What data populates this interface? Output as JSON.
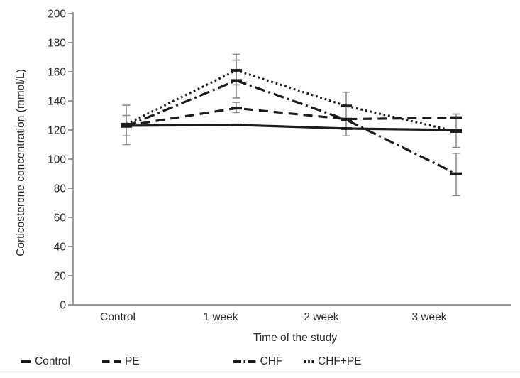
{
  "chart_data": {
    "type": "line",
    "title": "",
    "xlabel": "Time of the study",
    "ylabel": "Corticosterone concentration (mmol/L)",
    "categories": [
      "Control",
      "1 week",
      "2 week",
      "3 week"
    ],
    "series": [
      {
        "name": "Control",
        "style": "solid",
        "values": [
          123,
          123.5,
          121,
          120
        ]
      },
      {
        "name": "PE",
        "style": "dashed",
        "values": [
          123,
          135,
          127.5,
          128.5
        ]
      },
      {
        "name": "CHF",
        "style": "dashdot",
        "values": [
          122.5,
          154,
          127,
          90
        ]
      },
      {
        "name": "CHF+PE",
        "style": "dotted",
        "values": [
          124,
          161,
          136.5,
          119
        ]
      }
    ],
    "error_bars": [
      {
        "category_index": 0,
        "low": 110,
        "high": 137
      },
      {
        "category_index": 0,
        "low": 116,
        "high": 130
      },
      {
        "category_index": 1,
        "low": 151,
        "high": 172
      },
      {
        "category_index": 1,
        "low": 142,
        "high": 168
      },
      {
        "category_index": 1,
        "low": 132,
        "high": 139
      },
      {
        "category_index": 2,
        "low": 116,
        "high": 146
      },
      {
        "category_index": 3,
        "low": 108,
        "high": 131
      },
      {
        "category_index": 3,
        "low": 75,
        "high": 104
      }
    ],
    "ylim": [
      0,
      200
    ],
    "ytick_step": 20,
    "grid": false,
    "legend_position": "bottom",
    "line_color": "#1c1c1c",
    "axis_color": "#8c8c8c",
    "error_bar_color": "#8c8c8c",
    "text_color": "#2b2b2b"
  }
}
